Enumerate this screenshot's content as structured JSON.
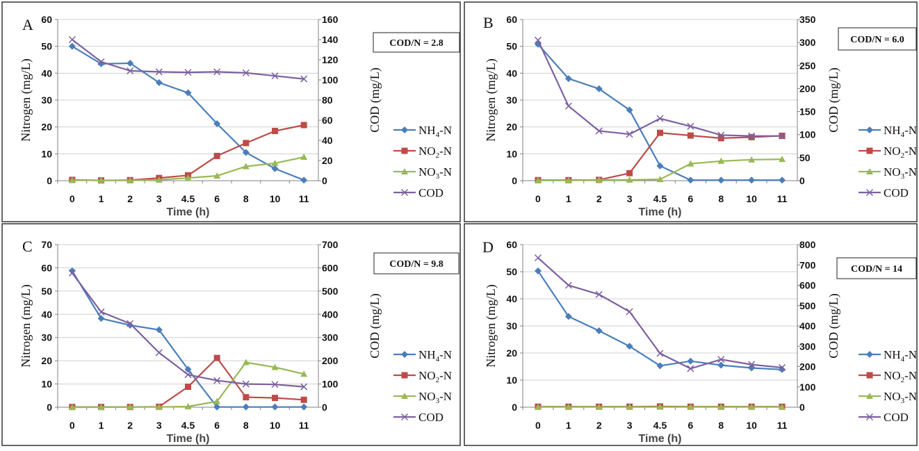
{
  "chart_data": [
    {
      "type": "line",
      "panel_label": "A",
      "annotation": "COD/N = 2.8",
      "categories": [
        "0",
        "1",
        "2",
        "3",
        "4.5",
        "6",
        "8",
        "10",
        "11"
      ],
      "xlabel": "Time (h)",
      "ylabel": "Nitrogen (mg/L)",
      "y2label": "COD (mg/L)",
      "ylim": [
        0,
        60
      ],
      "yticks": [
        0,
        10,
        20,
        30,
        40,
        50,
        60
      ],
      "y2lim": [
        0,
        160
      ],
      "y2ticks": [
        0,
        20,
        40,
        60,
        80,
        100,
        120,
        140,
        160
      ],
      "grid": true,
      "legend_position": "right",
      "series": [
        {
          "name": "NH4-N",
          "axis": "left",
          "color": "#4a7ebb",
          "marker": "diamond",
          "values": [
            50,
            43.5,
            43.7,
            36.5,
            32.7,
            21.2,
            10.5,
            4.5,
            0.2
          ]
        },
        {
          "name": "NO2-N",
          "axis": "left",
          "color": "#be4b48",
          "marker": "square",
          "values": [
            0.3,
            0.1,
            0.2,
            1,
            2,
            9.2,
            14,
            18.5,
            20.7
          ]
        },
        {
          "name": "NO3-N",
          "axis": "left",
          "color": "#98b954",
          "marker": "triangle",
          "values": [
            0.2,
            0.1,
            0.1,
            0.3,
            1,
            1.8,
            5.3,
            6.5,
            8.8
          ]
        },
        {
          "name": "COD",
          "axis": "right",
          "color": "#7d60a0",
          "marker": "x",
          "values": [
            140,
            118,
            109,
            108,
            107.5,
            108,
            107,
            104,
            101
          ]
        }
      ]
    },
    {
      "type": "line",
      "panel_label": "B",
      "annotation": "COD/N = 6.0",
      "categories": [
        "0",
        "1",
        "2",
        "3",
        "4.5",
        "6",
        "8",
        "10",
        "11"
      ],
      "xlabel": "Time (h)",
      "ylabel": "Nitrogen (mg/L)",
      "y2label": "COD (mg/L)",
      "ylim": [
        0,
        60
      ],
      "yticks": [
        0,
        10,
        20,
        30,
        40,
        50,
        60
      ],
      "y2lim": [
        0,
        350
      ],
      "y2ticks": [
        0,
        50,
        100,
        150,
        200,
        250,
        300,
        350
      ],
      "grid": true,
      "legend_position": "right",
      "series": [
        {
          "name": "NH4-N",
          "axis": "left",
          "color": "#4a7ebb",
          "marker": "diamond",
          "values": [
            50.8,
            38,
            34.2,
            26.3,
            5.5,
            0.2,
            0.2,
            0.2,
            0.2
          ]
        },
        {
          "name": "NO2-N",
          "axis": "left",
          "color": "#be4b48",
          "marker": "square",
          "values": [
            0.2,
            0.2,
            0.3,
            2.8,
            17.8,
            16.8,
            15.8,
            16.2,
            16.7
          ]
        },
        {
          "name": "NO3-N",
          "axis": "left",
          "color": "#98b954",
          "marker": "triangle",
          "values": [
            0.1,
            0.1,
            0.3,
            0.3,
            0.5,
            6.3,
            7.3,
            7.8,
            8
          ]
        },
        {
          "name": "COD",
          "axis": "right",
          "color": "#7d60a0",
          "marker": "x",
          "values": [
            305,
            162,
            108,
            101,
            135,
            118,
            99,
            97,
            97
          ]
        }
      ]
    },
    {
      "type": "line",
      "panel_label": "C",
      "annotation": "COD/N = 9.8",
      "categories": [
        "0",
        "1",
        "2",
        "3",
        "4.5",
        "6",
        "8",
        "10",
        "11"
      ],
      "xlabel": "Time (h)",
      "ylabel": "Nitrogen (mg/L)",
      "y2label": "COD (mg/L)",
      "ylim": [
        0,
        70
      ],
      "yticks": [
        0,
        10,
        20,
        30,
        40,
        50,
        60,
        70
      ],
      "y2lim": [
        0,
        700
      ],
      "y2ticks": [
        0,
        100,
        200,
        300,
        400,
        500,
        600,
        700
      ],
      "grid": true,
      "legend_position": "right",
      "series": [
        {
          "name": "NH4-N",
          "axis": "left",
          "color": "#4a7ebb",
          "marker": "diamond",
          "values": [
            58.7,
            38.2,
            35.3,
            33.3,
            16.3,
            0.1,
            0.1,
            0.1,
            0.1
          ]
        },
        {
          "name": "NO2-N",
          "axis": "left",
          "color": "#be4b48",
          "marker": "square",
          "values": [
            0.1,
            0.1,
            0.1,
            0.2,
            8.8,
            21.2,
            4.3,
            4,
            3.2
          ]
        },
        {
          "name": "NO3-N",
          "axis": "left",
          "color": "#98b954",
          "marker": "triangle",
          "values": [
            0,
            0,
            0.1,
            0.1,
            0.3,
            2.5,
            19.3,
            17.2,
            14.3
          ]
        },
        {
          "name": "COD",
          "axis": "right",
          "color": "#7d60a0",
          "marker": "x",
          "values": [
            578,
            410,
            360,
            235,
            140,
            115,
            100,
            98,
            88
          ]
        }
      ]
    },
    {
      "type": "line",
      "panel_label": "D",
      "annotation": "COD/N = 14",
      "categories": [
        "0",
        "1",
        "2",
        "3",
        "4.5",
        "6",
        "8",
        "10",
        "11"
      ],
      "xlabel": "Time (h)",
      "ylabel": "Nitrogen (mg/L)",
      "y2label": "COD (mg/L)",
      "ylim": [
        0,
        60
      ],
      "yticks": [
        0,
        10,
        20,
        30,
        40,
        50,
        60
      ],
      "y2lim": [
        0,
        800
      ],
      "y2ticks": [
        0,
        100,
        200,
        300,
        400,
        500,
        600,
        700,
        800
      ],
      "grid": true,
      "legend_position": "right",
      "series": [
        {
          "name": "NH4-N",
          "axis": "left",
          "color": "#4a7ebb",
          "marker": "diamond",
          "values": [
            50.3,
            33.5,
            28.2,
            22.5,
            15.3,
            17,
            15.5,
            14.5,
            13.9
          ]
        },
        {
          "name": "NO2-N",
          "axis": "left",
          "color": "#be4b48",
          "marker": "square",
          "values": [
            0.2,
            0.2,
            0.2,
            0.2,
            0.3,
            0.2,
            0.2,
            0.2,
            0.2
          ]
        },
        {
          "name": "NO3-N",
          "axis": "left",
          "color": "#98b954",
          "marker": "triangle",
          "values": [
            0.1,
            0.1,
            0.1,
            0.1,
            0.1,
            0.1,
            0.1,
            0.1,
            0.1
          ]
        },
        {
          "name": "COD",
          "axis": "right",
          "color": "#7d60a0",
          "marker": "x",
          "values": [
            735,
            600,
            555,
            470,
            265,
            190,
            235,
            210,
            195
          ]
        }
      ]
    }
  ]
}
